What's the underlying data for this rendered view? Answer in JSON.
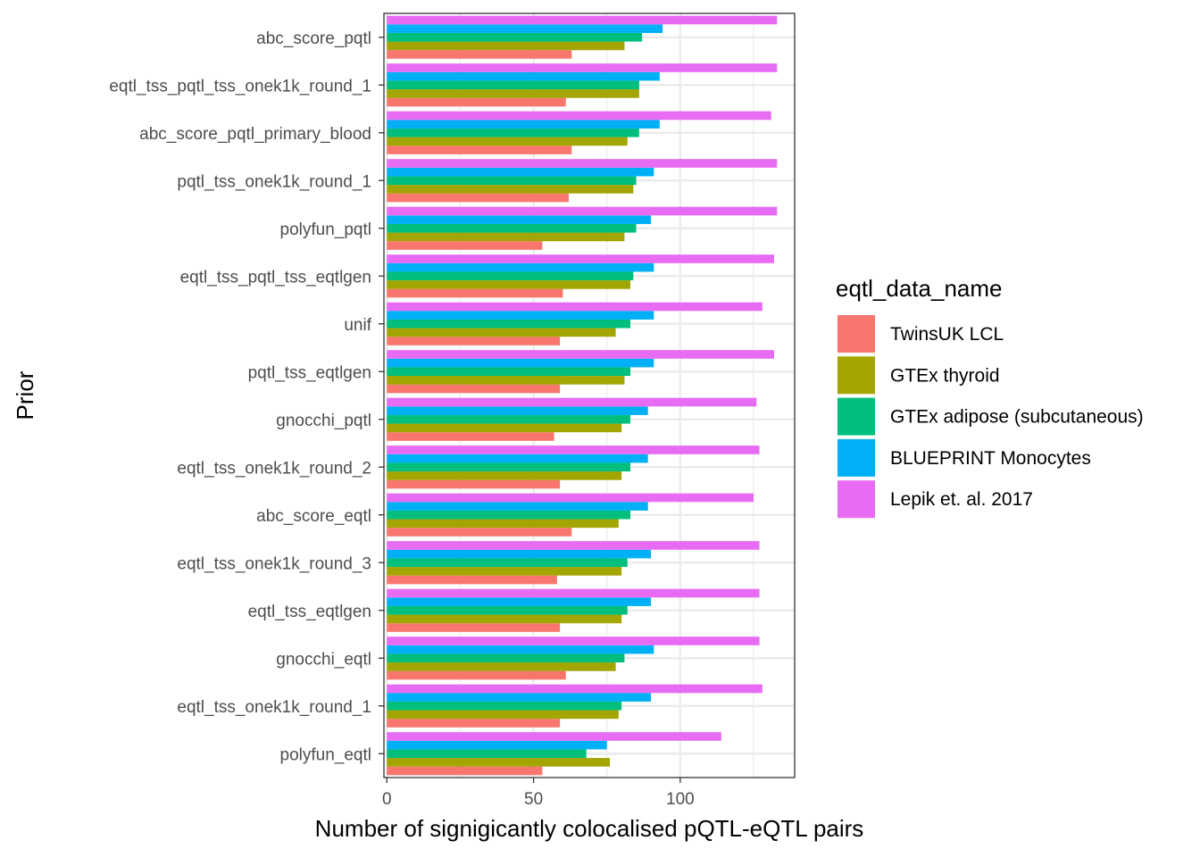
{
  "chart_data": {
    "type": "bar",
    "orientation": "horizontal",
    "xlabel": "Number of signigicantly colocalised pQTL-eQTL pairs",
    "ylabel": "Prior",
    "xlim": [
      -1,
      139
    ],
    "xticks": [
      0,
      50,
      100
    ],
    "grid": true,
    "legend_title": "eqtl_data_name",
    "legend_position": "right",
    "categories": [
      "abc_score_pqtl",
      "eqtl_tss_pqtl_tss_onek1k_round_1",
      "abc_score_pqtl_primary_blood",
      "pqtl_tss_onek1k_round_1",
      "polyfun_pqtl",
      "eqtl_tss_pqtl_tss_eqtlgen",
      "unif",
      "pqtl_tss_eqtlgen",
      "gnocchi_pqtl",
      "eqtl_tss_onek1k_round_2",
      "abc_score_eqtl",
      "eqtl_tss_onek1k_round_3",
      "eqtl_tss_eqtlgen",
      "gnocchi_eqtl",
      "eqtl_tss_onek1k_round_1",
      "polyfun_eqtl"
    ],
    "series": [
      {
        "name": "TwinsUK LCL",
        "color": "#F8766D",
        "values": [
          63,
          61,
          63,
          62,
          53,
          60,
          59,
          59,
          57,
          59,
          63,
          58,
          59,
          61,
          59,
          53
        ]
      },
      {
        "name": "GTEx thyroid",
        "color": "#A3A500",
        "values": [
          81,
          86,
          82,
          84,
          81,
          83,
          78,
          81,
          80,
          80,
          79,
          80,
          80,
          78,
          79,
          76
        ]
      },
      {
        "name": "GTEx adipose (subcutaneous)",
        "color": "#00BF7D",
        "values": [
          87,
          86,
          86,
          85,
          85,
          84,
          83,
          83,
          83,
          83,
          83,
          82,
          82,
          81,
          80,
          68
        ]
      },
      {
        "name": "BLUEPRINT Monocytes",
        "color": "#00B0F6",
        "values": [
          94,
          93,
          93,
          91,
          90,
          91,
          91,
          91,
          89,
          89,
          89,
          90,
          90,
          91,
          90,
          75
        ]
      },
      {
        "name": "Lepik et. al. 2017",
        "color": "#E76BF3",
        "values": [
          133,
          133,
          131,
          133,
          133,
          132,
          128,
          132,
          126,
          127,
          125,
          127,
          127,
          127,
          128,
          114
        ]
      }
    ]
  }
}
